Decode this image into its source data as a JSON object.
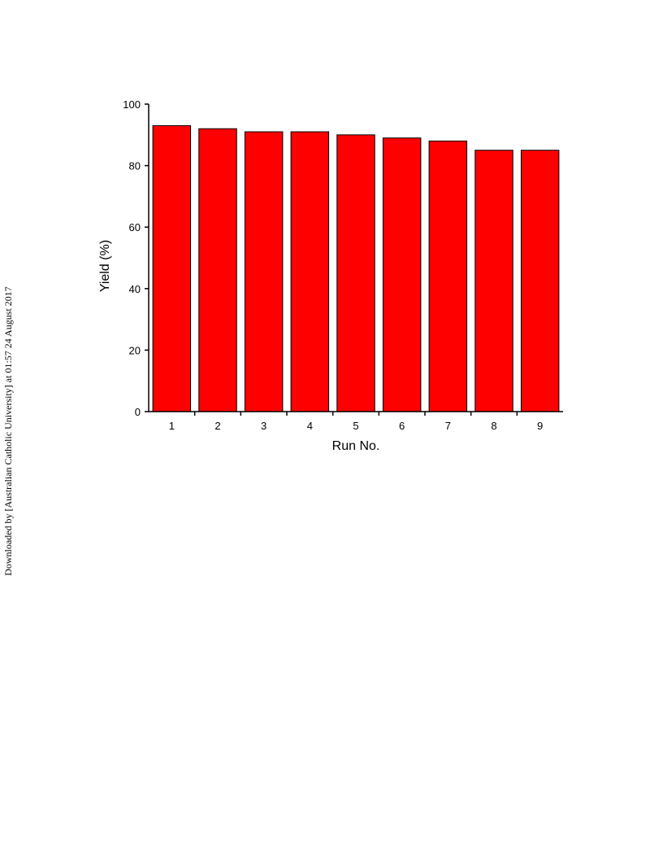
{
  "side_note": "Downloaded by [Australian Catholic University] at 01:57 24 August 2017",
  "chart_data": {
    "type": "bar",
    "x_label": "Run No.",
    "y_label": "Yield (%)",
    "categories": [
      "1",
      "2",
      "3",
      "4",
      "5",
      "6",
      "7",
      "8",
      "9"
    ],
    "values": [
      93,
      92,
      91,
      91,
      90,
      89,
      88,
      85,
      85
    ],
    "color": "#ff0000",
    "ylim": [
      0,
      100
    ],
    "yticks": [
      0,
      20,
      40,
      60,
      80,
      100
    ],
    "grid": false
  }
}
